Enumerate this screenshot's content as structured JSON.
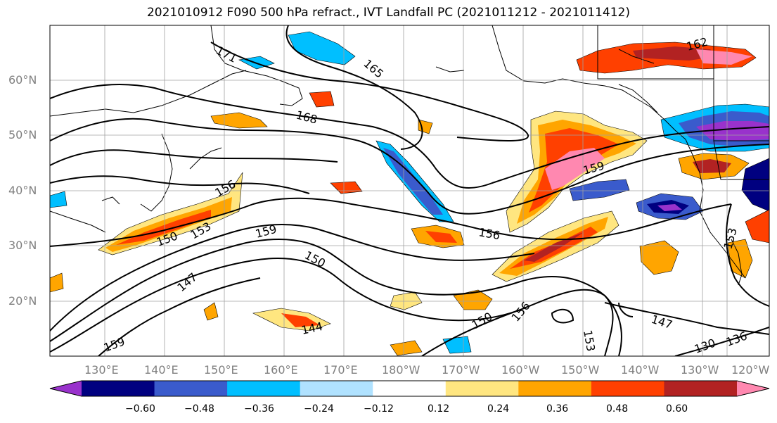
{
  "title": "2021010912 F090 500 hPa refract., IVT Landfall PC (2021011212 - 2021011412)",
  "lat_labels": [
    "60°N",
    "50°N",
    "40°N",
    "30°N",
    "20°N"
  ],
  "lon_labels": [
    "130°E",
    "140°E",
    "150°E",
    "160°E",
    "170°E",
    "180°W",
    "170°W",
    "160°W",
    "150°W",
    "140°W",
    "130°W",
    "120°W"
  ],
  "colorbar": {
    "ticks": [
      "−0.60",
      "−0.48",
      "−0.36",
      "−0.24",
      "−0.12",
      "0.12",
      "0.24",
      "0.36",
      "0.48",
      "0.60"
    ],
    "colors": [
      "#9932cc",
      "#000080",
      "#3a5bcc",
      "#00bfff",
      "#b0e2ff",
      "#ffffff",
      "#ffe680",
      "#ffa500",
      "#ff4000",
      "#b22222",
      "#ff88b0"
    ]
  },
  "contour_labels": [
    "171",
    "165",
    "168",
    "162",
    "159",
    "156",
    "153",
    "150",
    "159",
    "156",
    "150",
    "147",
    "153",
    "150",
    "156",
    "153",
    "147",
    "144",
    "159",
    "136",
    "130"
  ]
}
